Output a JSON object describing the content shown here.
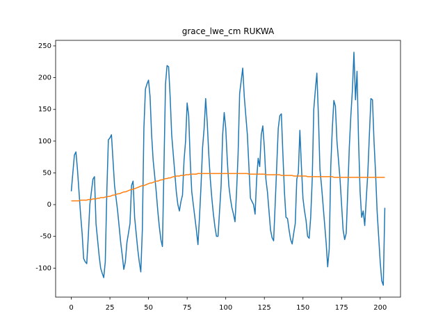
{
  "chart_data": {
    "type": "line",
    "title": "grace_lwe_cm RUKWA",
    "x": [
      0,
      1,
      2,
      3,
      4,
      5,
      6,
      7,
      8,
      9,
      10,
      11,
      12,
      13,
      14,
      15,
      16,
      17,
      18,
      19,
      20,
      21,
      22,
      23,
      24,
      25,
      26,
      27,
      28,
      29,
      30,
      31,
      32,
      33,
      34,
      35,
      36,
      37,
      38,
      39,
      40,
      41,
      42,
      43,
      44,
      45,
      46,
      47,
      48,
      49,
      50,
      51,
      52,
      53,
      54,
      55,
      56,
      57,
      58,
      59,
      60,
      61,
      62,
      63,
      64,
      65,
      66,
      67,
      68,
      69,
      70,
      71,
      72,
      73,
      74,
      75,
      76,
      77,
      78,
      79,
      80,
      81,
      82,
      83,
      84,
      85,
      86,
      87,
      88,
      89,
      90,
      91,
      92,
      93,
      94,
      95,
      96,
      97,
      98,
      99,
      100,
      101,
      102,
      103,
      104,
      105,
      106,
      107,
      108,
      109,
      110,
      111,
      112,
      113,
      114,
      115,
      116,
      117,
      118,
      119,
      120,
      121,
      122,
      123,
      124,
      125,
      126,
      127,
      128,
      129,
      130,
      131,
      132,
      133,
      134,
      135,
      136,
      137,
      138,
      139,
      140,
      141,
      142,
      143,
      144,
      145,
      146,
      147,
      148,
      149,
      150,
      151,
      152,
      153,
      154,
      155,
      156,
      157,
      158,
      159,
      160,
      161,
      162,
      163,
      164,
      165,
      166,
      167,
      168,
      169,
      170,
      171,
      172,
      173,
      174,
      175,
      176,
      177,
      178,
      179,
      180,
      181,
      182,
      183,
      184,
      185,
      186,
      187,
      188,
      189,
      190,
      191,
      192,
      193,
      194,
      195,
      196,
      197,
      198,
      199,
      200,
      201,
      202,
      203
    ],
    "series": [
      {
        "color": "#1f77b4",
        "values": [
          21,
          50,
          78,
          83,
          55,
          20,
          -15,
          -45,
          -85,
          -90,
          -93,
          -50,
          0,
          20,
          40,
          44,
          -30,
          -55,
          -80,
          -100,
          -108,
          -115,
          -90,
          20,
          102,
          105,
          110,
          70,
          30,
          10,
          -10,
          -35,
          -60,
          -80,
          -102,
          -90,
          -60,
          -45,
          -30,
          30,
          37,
          -20,
          -45,
          -70,
          -90,
          -106,
          -40,
          120,
          182,
          190,
          196,
          170,
          110,
          70,
          45,
          20,
          -10,
          -35,
          -55,
          -66,
          60,
          190,
          219,
          217,
          170,
          110,
          80,
          50,
          20,
          0,
          -10,
          5,
          15,
          70,
          100,
          160,
          140,
          70,
          20,
          0,
          -20,
          -40,
          -63,
          -20,
          30,
          90,
          120,
          167,
          130,
          80,
          40,
          10,
          -15,
          -35,
          -50,
          -50,
          -10,
          30,
          110,
          145,
          120,
          70,
          30,
          10,
          -5,
          -15,
          -27,
          20,
          80,
          175,
          195,
          215,
          170,
          140,
          110,
          60,
          10,
          5,
          0,
          -15,
          40,
          73,
          60,
          110,
          124,
          90,
          40,
          20,
          -10,
          -40,
          -52,
          -57,
          0,
          60,
          120,
          140,
          143,
          80,
          20,
          -20,
          -22,
          -40,
          -55,
          -62,
          -45,
          -30,
          40,
          50,
          117,
          60,
          10,
          -10,
          -25,
          -50,
          -53,
          -20,
          40,
          150,
          180,
          207,
          140,
          55,
          30,
          0,
          -30,
          -60,
          -98,
          -70,
          60,
          120,
          164,
          155,
          100,
          70,
          40,
          0,
          -40,
          -55,
          -45,
          20,
          90,
          140,
          180,
          240,
          165,
          210,
          100,
          20,
          -20,
          -10,
          -33,
          10,
          50,
          110,
          167,
          165,
          100,
          50,
          -10,
          -50,
          -90,
          -120,
          -127,
          -5
        ]
      },
      {
        "color": "#ff7f0e",
        "values": [
          6,
          6,
          6,
          6,
          6,
          6,
          7,
          7,
          7,
          7,
          7,
          8,
          8,
          8,
          9,
          9,
          9,
          10,
          10,
          11,
          11,
          11,
          12,
          12,
          13,
          13,
          14,
          15,
          15,
          16,
          17,
          17,
          18,
          19,
          20,
          20,
          21,
          22,
          23,
          24,
          24,
          25,
          26,
          27,
          28,
          29,
          30,
          30,
          31,
          32,
          33,
          34,
          34,
          35,
          36,
          37,
          37,
          38,
          39,
          39,
          40,
          41,
          41,
          42,
          42,
          43,
          44,
          44,
          45,
          45,
          45,
          46,
          46,
          46,
          47,
          47,
          47,
          48,
          48,
          48,
          48,
          48,
          49,
          49,
          49,
          49,
          49,
          49,
          49,
          49,
          49,
          49,
          49,
          49,
          49,
          49,
          49,
          49,
          49,
          49,
          49,
          49,
          49,
          49,
          49,
          49,
          49,
          49,
          49,
          49,
          49,
          49,
          49,
          49,
          49,
          48,
          48,
          48,
          48,
          48,
          48,
          48,
          48,
          48,
          48,
          48,
          47,
          47,
          47,
          47,
          47,
          47,
          47,
          47,
          47,
          47,
          46,
          46,
          46,
          46,
          46,
          46,
          46,
          46,
          45,
          45,
          45,
          45,
          45,
          45,
          45,
          45,
          45,
          44,
          44,
          44,
          44,
          44,
          44,
          44,
          44,
          44,
          44,
          44,
          44,
          44,
          44,
          44,
          44,
          44,
          43,
          43,
          43,
          43,
          43,
          43,
          43,
          43,
          43,
          43,
          43,
          43,
          43,
          43,
          43,
          43,
          43,
          43,
          43,
          43,
          43,
          43,
          43,
          43,
          43,
          43,
          43,
          43,
          43,
          43,
          43,
          43,
          43,
          43
        ]
      }
    ],
    "xlim": [
      -10.15,
      213.15
    ],
    "ylim": [
      -145.7,
      258.7
    ],
    "xticks": [
      0,
      25,
      50,
      75,
      100,
      125,
      150,
      175,
      200
    ],
    "yticks": [
      -100,
      -50,
      0,
      50,
      100,
      150,
      200,
      250
    ]
  }
}
